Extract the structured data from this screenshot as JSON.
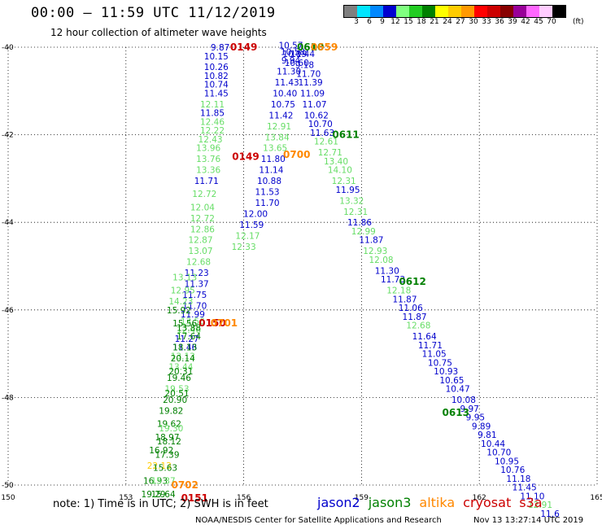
{
  "header": {
    "title": "00:00 – 11:59 UTC 11/12/2019",
    "subtitle": "12 hour collection of altimeter wave heights"
  },
  "colorbar": {
    "colors": [
      "#7f7f7f",
      "#00e5ff",
      "#0088ff",
      "#0000d0",
      "#80ff80",
      "#22cc22",
      "#008000",
      "#ffff00",
      "#ffcc00",
      "#ff9900",
      "#ff0000",
      "#cc0000",
      "#880000",
      "#990099",
      "#ff66ff",
      "#ffccff",
      "#000000"
    ],
    "labels": [
      "3",
      "6",
      "9",
      "12",
      "15",
      "18",
      "21",
      "24",
      "27",
      "30",
      "33",
      "36",
      "39",
      "42",
      "45",
      "70"
    ],
    "unit": "(ft)"
  },
  "footer": {
    "note": "note: 1) Time is in UTC; 2) SWH is in feet",
    "credit": "NOAA/NESDIS Center for Satellite Applications and Research",
    "timestamp": "Nov 13 13:27:14 UTC 2019"
  },
  "legend": [
    {
      "label": "jason2",
      "color": "#0000cc"
    },
    {
      "label": "jason3",
      "color": "#008000"
    },
    {
      "label": "altika",
      "color": "#ff8800"
    },
    {
      "label": "cryosat",
      "color": "#cc0000"
    },
    {
      "label": "s3a",
      "color": "#cc0000"
    }
  ],
  "chart_data": {
    "type": "scatter",
    "title": "00:00 – 11:59 UTC 11/12/2019",
    "xlim": [
      150,
      165
    ],
    "ylim": [
      -50,
      -40
    ],
    "x_ticks": [
      150,
      153,
      156,
      159,
      162,
      165
    ],
    "y_ticks": [
      -40,
      -42,
      -44,
      -46,
      -48,
      -50
    ],
    "x_tick_labels": [
      "150",
      "153",
      "156",
      "159",
      "162",
      "165"
    ],
    "y_tick_labels": [
      "-40",
      "-42",
      "-44",
      "-46",
      "-48",
      "-50"
    ],
    "grid": true,
    "points": [
      {
        "lon": 155.4,
        "lat": -40.0,
        "v": "9.87",
        "c": "#0000cc"
      },
      {
        "lon": 155.3,
        "lat": -40.2,
        "v": "10.15",
        "c": "#0000cc"
      },
      {
        "lon": 155.3,
        "lat": -40.45,
        "v": "10.26",
        "c": "#0000cc"
      },
      {
        "lon": 155.3,
        "lat": -40.65,
        "v": "10.82",
        "c": "#0000cc"
      },
      {
        "lon": 155.3,
        "lat": -40.85,
        "v": "10.74",
        "c": "#0000cc"
      },
      {
        "lon": 155.3,
        "lat": -41.05,
        "v": "11.45",
        "c": "#0000cc"
      },
      {
        "lon": 155.2,
        "lat": -41.3,
        "v": "12.11",
        "c": "#66dd66"
      },
      {
        "lon": 155.2,
        "lat": -41.5,
        "v": "11.85",
        "c": "#0000cc"
      },
      {
        "lon": 155.2,
        "lat": -41.7,
        "v": "12.46",
        "c": "#66dd66"
      },
      {
        "lon": 155.2,
        "lat": -41.9,
        "v": "12.22",
        "c": "#66dd66"
      },
      {
        "lon": 155.15,
        "lat": -42.1,
        "v": "12.43",
        "c": "#66dd66"
      },
      {
        "lon": 155.1,
        "lat": -42.3,
        "v": "13.96",
        "c": "#66dd66"
      },
      {
        "lon": 155.1,
        "lat": -42.55,
        "v": "13.76",
        "c": "#66dd66"
      },
      {
        "lon": 155.1,
        "lat": -42.8,
        "v": "13.36",
        "c": "#66dd66"
      },
      {
        "lon": 155.05,
        "lat": -43.05,
        "v": "11.71",
        "c": "#0000cc"
      },
      {
        "lon": 155.0,
        "lat": -43.35,
        "v": "12.72",
        "c": "#66dd66"
      },
      {
        "lon": 154.95,
        "lat": -43.65,
        "v": "12.04",
        "c": "#66dd66"
      },
      {
        "lon": 154.95,
        "lat": -43.9,
        "v": "12.72",
        "c": "#66dd66"
      },
      {
        "lon": 154.95,
        "lat": -44.15,
        "v": "12.86",
        "c": "#66dd66"
      },
      {
        "lon": 154.9,
        "lat": -44.4,
        "v": "12.87",
        "c": "#66dd66"
      },
      {
        "lon": 154.9,
        "lat": -44.65,
        "v": "13.07",
        "c": "#66dd66"
      },
      {
        "lon": 154.85,
        "lat": -44.9,
        "v": "12.68",
        "c": "#66dd66"
      },
      {
        "lon": 154.8,
        "lat": -45.15,
        "v": "11.23",
        "c": "#0000cc"
      },
      {
        "lon": 154.8,
        "lat": -45.4,
        "v": "11.37",
        "c": "#0000cc"
      },
      {
        "lon": 154.75,
        "lat": -45.65,
        "v": "11.75",
        "c": "#0000cc"
      },
      {
        "lon": 154.75,
        "lat": -45.9,
        "v": "11.70",
        "c": "#0000cc"
      },
      {
        "lon": 154.7,
        "lat": -46.1,
        "v": "11.99",
        "c": "#0000cc"
      },
      {
        "lon": 154.7,
        "lat": -46.25,
        "v": "13.56",
        "c": "#66dd66"
      },
      {
        "lon": 154.6,
        "lat": -46.45,
        "v": "12.46",
        "c": "#66dd66"
      },
      {
        "lon": 154.55,
        "lat": -46.65,
        "v": "11.27",
        "c": "#0000cc"
      },
      {
        "lon": 154.5,
        "lat": -46.85,
        "v": "11.46",
        "c": "#0000cc"
      },
      {
        "lon": 154.45,
        "lat": -47.05,
        "v": "13.13",
        "c": "#66dd66"
      },
      {
        "lon": 154.4,
        "lat": -47.3,
        "v": "13.44",
        "c": "#66dd66"
      },
      {
        "lon": 154.35,
        "lat": -47.55,
        "v": "19.46",
        "c": "#008000"
      },
      {
        "lon": 154.3,
        "lat": -47.8,
        "v": "19.53",
        "c": "#66dd66"
      },
      {
        "lon": 154.25,
        "lat": -48.05,
        "v": "20.90",
        "c": "#008000"
      },
      {
        "lon": 154.15,
        "lat": -48.3,
        "v": "19.82",
        "c": "#008000"
      },
      {
        "lon": 154.1,
        "lat": -48.6,
        "v": "19.62",
        "c": "#008000"
      },
      {
        "lon": 154.05,
        "lat": -48.9,
        "v": "18.97",
        "c": "#008000"
      },
      {
        "lon": 153.9,
        "lat": -49.2,
        "v": "16.92",
        "c": "#008000"
      },
      {
        "lon": 153.85,
        "lat": -49.55,
        "v": "22.13",
        "c": "#ffcc00"
      },
      {
        "lon": 153.75,
        "lat": -49.9,
        "v": "16.93",
        "c": "#008000"
      },
      {
        "lon": 153.7,
        "lat": -50.2,
        "v": "19.29",
        "c": "#008000"
      },
      {
        "lon": 154.5,
        "lat": -45.25,
        "v": "13.13",
        "c": "#66dd66"
      },
      {
        "lon": 154.45,
        "lat": -45.55,
        "v": "12.95",
        "c": "#66dd66"
      },
      {
        "lon": 154.4,
        "lat": -45.8,
        "v": "14.23",
        "c": "#66dd66"
      },
      {
        "lon": 154.35,
        "lat": -46.0,
        "v": "15.92",
        "c": "#008000"
      },
      {
        "lon": 154.5,
        "lat": -46.3,
        "v": "15.56",
        "c": "#008000"
      },
      {
        "lon": 154.6,
        "lat": -46.4,
        "v": "13.88",
        "c": "#008000"
      },
      {
        "lon": 154.6,
        "lat": -46.6,
        "v": "17.64",
        "c": "#008000"
      },
      {
        "lon": 154.5,
        "lat": -46.85,
        "v": "18.13",
        "c": "#008000"
      },
      {
        "lon": 154.45,
        "lat": -47.1,
        "v": "20.14",
        "c": "#008000"
      },
      {
        "lon": 154.4,
        "lat": -47.4,
        "v": "20.31",
        "c": "#008000"
      },
      {
        "lon": 154.3,
        "lat": -47.9,
        "v": "20.51",
        "c": "#008000"
      },
      {
        "lon": 154.15,
        "lat": -48.7,
        "v": "19.30",
        "c": "#66dd66"
      },
      {
        "lon": 154.1,
        "lat": -49.0,
        "v": "18.12",
        "c": "#008000"
      },
      {
        "lon": 154.05,
        "lat": -49.3,
        "v": "17.39",
        "c": "#008000"
      },
      {
        "lon": 154.0,
        "lat": -49.6,
        "v": "15.63",
        "c": "#008000"
      },
      {
        "lon": 153.95,
        "lat": -49.9,
        "v": "15.37",
        "c": "#66dd66"
      },
      {
        "lon": 153.95,
        "lat": -50.2,
        "v": "15.64",
        "c": "#008000"
      },
      {
        "lon": 156.3,
        "lat": -43.8,
        "v": "12.00",
        "c": "#0000cc"
      },
      {
        "lon": 156.2,
        "lat": -44.05,
        "v": "11.59",
        "c": "#0000cc"
      },
      {
        "lon": 156.1,
        "lat": -44.3,
        "v": "12.17",
        "c": "#66dd66"
      },
      {
        "lon": 156.0,
        "lat": -44.55,
        "v": "12.33",
        "c": "#66dd66"
      },
      {
        "lon": 156.6,
        "lat": -43.55,
        "v": "11.70",
        "c": "#0000cc"
      },
      {
        "lon": 156.6,
        "lat": -43.3,
        "v": "11.53",
        "c": "#0000cc"
      },
      {
        "lon": 156.65,
        "lat": -43.05,
        "v": "10.88",
        "c": "#0000cc"
      },
      {
        "lon": 156.7,
        "lat": -42.8,
        "v": "11.14",
        "c": "#0000cc"
      },
      {
        "lon": 156.75,
        "lat": -42.55,
        "v": "11.80",
        "c": "#0000cc"
      },
      {
        "lon": 156.8,
        "lat": -42.3,
        "v": "13.65",
        "c": "#66dd66"
      },
      {
        "lon": 156.85,
        "lat": -42.05,
        "v": "13.84",
        "c": "#66dd66"
      },
      {
        "lon": 156.9,
        "lat": -41.8,
        "v": "12.91",
        "c": "#66dd66"
      },
      {
        "lon": 156.95,
        "lat": -41.55,
        "v": "11.42",
        "c": "#0000cc"
      },
      {
        "lon": 157.0,
        "lat": -41.3,
        "v": "10.75",
        "c": "#0000cc"
      },
      {
        "lon": 157.05,
        "lat": -41.05,
        "v": "10.40",
        "c": "#0000cc"
      },
      {
        "lon": 157.1,
        "lat": -40.8,
        "v": "11.43",
        "c": "#0000cc"
      },
      {
        "lon": 157.15,
        "lat": -40.55,
        "v": "11.30",
        "c": "#0000cc"
      },
      {
        "lon": 157.2,
        "lat": -40.3,
        "v": "9.94",
        "c": "#0000cc"
      },
      {
        "lon": 157.25,
        "lat": -40.1,
        "v": "10.58",
        "c": "#0000cc"
      },
      {
        "lon": 157.2,
        "lat": -39.95,
        "v": "10.57",
        "c": "#0000cc"
      },
      {
        "lon": 157.3,
        "lat": -40.15,
        "v": "10.19",
        "c": "#0000cc"
      },
      {
        "lon": 157.35,
        "lat": -40.35,
        "v": "10.60",
        "c": "#0000cc"
      },
      {
        "lon": 157.5,
        "lat": -40.15,
        "v": "10.44",
        "c": "#0000cc"
      },
      {
        "lon": 157.55,
        "lat": -40.4,
        "v": "9.18",
        "c": "#0000cc"
      },
      {
        "lon": 157.65,
        "lat": -40.6,
        "v": "11.70",
        "c": "#0000cc"
      },
      {
        "lon": 157.7,
        "lat": -40.8,
        "v": "11.39",
        "c": "#0000cc"
      },
      {
        "lon": 157.75,
        "lat": -41.05,
        "v": "11.09",
        "c": "#0000cc"
      },
      {
        "lon": 157.8,
        "lat": -41.3,
        "v": "11.07",
        "c": "#0000cc"
      },
      {
        "lon": 157.85,
        "lat": -41.55,
        "v": "10.62",
        "c": "#0000cc"
      },
      {
        "lon": 157.95,
        "lat": -41.75,
        "v": "10.70",
        "c": "#0000cc"
      },
      {
        "lon": 158.0,
        "lat": -41.95,
        "v": "11.63",
        "c": "#0000cc"
      },
      {
        "lon": 158.1,
        "lat": -42.15,
        "v": "12.61",
        "c": "#66dd66"
      },
      {
        "lon": 158.2,
        "lat": -42.4,
        "v": "12.71",
        "c": "#66dd66"
      },
      {
        "lon": 158.35,
        "lat": -42.6,
        "v": "13.40",
        "c": "#66dd66"
      },
      {
        "lon": 158.45,
        "lat": -42.8,
        "v": "14.10",
        "c": "#66dd66"
      },
      {
        "lon": 158.55,
        "lat": -43.05,
        "v": "12.31",
        "c": "#66dd66"
      },
      {
        "lon": 158.65,
        "lat": -43.25,
        "v": "11.95",
        "c": "#0000cc"
      },
      {
        "lon": 158.75,
        "lat": -43.5,
        "v": "13.32",
        "c": "#66dd66"
      },
      {
        "lon": 158.85,
        "lat": -43.75,
        "v": "12.31",
        "c": "#66dd66"
      },
      {
        "lon": 158.95,
        "lat": -44.0,
        "v": "11.86",
        "c": "#0000cc"
      },
      {
        "lon": 159.05,
        "lat": -44.2,
        "v": "12.99",
        "c": "#66dd66"
      },
      {
        "lon": 159.25,
        "lat": -44.4,
        "v": "11.87",
        "c": "#0000cc"
      },
      {
        "lon": 159.35,
        "lat": -44.65,
        "v": "12.93",
        "c": "#66dd66"
      },
      {
        "lon": 159.5,
        "lat": -44.85,
        "v": "12.08",
        "c": "#66dd66"
      },
      {
        "lon": 159.65,
        "lat": -45.1,
        "v": "11.30",
        "c": "#0000cc"
      },
      {
        "lon": 159.8,
        "lat": -45.3,
        "v": "11.73",
        "c": "#0000cc"
      },
      {
        "lon": 159.95,
        "lat": -45.55,
        "v": "12.18",
        "c": "#66dd66"
      },
      {
        "lon": 160.1,
        "lat": -45.75,
        "v": "11.87",
        "c": "#0000cc"
      },
      {
        "lon": 160.25,
        "lat": -45.95,
        "v": "11.06",
        "c": "#0000cc"
      },
      {
        "lon": 160.35,
        "lat": -46.15,
        "v": "11.87",
        "c": "#0000cc"
      },
      {
        "lon": 160.45,
        "lat": -46.35,
        "v": "12.68",
        "c": "#66dd66"
      },
      {
        "lon": 160.6,
        "lat": -46.6,
        "v": "11.64",
        "c": "#0000cc"
      },
      {
        "lon": 160.75,
        "lat": -46.8,
        "v": "11.71",
        "c": "#0000cc"
      },
      {
        "lon": 160.85,
        "lat": -47.0,
        "v": "11.05",
        "c": "#0000cc"
      },
      {
        "lon": 161.0,
        "lat": -47.2,
        "v": "10.75",
        "c": "#0000cc"
      },
      {
        "lon": 161.15,
        "lat": -47.4,
        "v": "10.93",
        "c": "#0000cc"
      },
      {
        "lon": 161.3,
        "lat": -47.6,
        "v": "10.65",
        "c": "#0000cc"
      },
      {
        "lon": 161.45,
        "lat": -47.8,
        "v": "10.47",
        "c": "#0000cc"
      },
      {
        "lon": 161.6,
        "lat": -48.05,
        "v": "10.08",
        "c": "#0000cc"
      },
      {
        "lon": 161.75,
        "lat": -48.25,
        "v": "9.97",
        "c": "#0000cc"
      },
      {
        "lon": 161.9,
        "lat": -48.45,
        "v": "9.95",
        "c": "#0000cc"
      },
      {
        "lon": 162.05,
        "lat": -48.65,
        "v": "9.89",
        "c": "#0000cc"
      },
      {
        "lon": 162.2,
        "lat": -48.85,
        "v": "9.81",
        "c": "#0000cc"
      },
      {
        "lon": 162.35,
        "lat": -49.05,
        "v": "10.44",
        "c": "#0000cc"
      },
      {
        "lon": 162.5,
        "lat": -49.25,
        "v": "10.70",
        "c": "#0000cc"
      },
      {
        "lon": 162.7,
        "lat": -49.45,
        "v": "10.95",
        "c": "#0000cc"
      },
      {
        "lon": 162.85,
        "lat": -49.65,
        "v": "10.76",
        "c": "#0000cc"
      },
      {
        "lon": 163.0,
        "lat": -49.85,
        "v": "11.18",
        "c": "#0000cc"
      },
      {
        "lon": 163.15,
        "lat": -50.05,
        "v": "11.45",
        "c": "#0000cc"
      },
      {
        "lon": 163.35,
        "lat": -50.25,
        "v": "11.10",
        "c": "#0000cc"
      },
      {
        "lon": 163.55,
        "lat": -50.45,
        "v": "12.91",
        "c": "#66dd66"
      },
      {
        "lon": 163.8,
        "lat": -50.65,
        "v": "11.6",
        "c": "#0000cc"
      }
    ],
    "annotations": [
      {
        "lon": 156.0,
        "lat": -40.0,
        "text": "0149",
        "c": "#cc0000"
      },
      {
        "lon": 157.7,
        "lat": -40.0,
        "text": "0610",
        "c": "#008000"
      },
      {
        "lon": 158.05,
        "lat": -40.0,
        "text": "0659",
        "c": "#ff8800"
      },
      {
        "lon": 158.6,
        "lat": -42.0,
        "text": "0611",
        "c": "#008000"
      },
      {
        "lon": 156.05,
        "lat": -42.5,
        "text": "0149",
        "c": "#cc0000"
      },
      {
        "lon": 157.35,
        "lat": -42.45,
        "text": "0700",
        "c": "#ff8800"
      },
      {
        "lon": 160.3,
        "lat": -45.35,
        "text": "0612",
        "c": "#008000"
      },
      {
        "lon": 155.2,
        "lat": -46.3,
        "text": "0150",
        "c": "#cc0000"
      },
      {
        "lon": 155.5,
        "lat": -46.3,
        "text": "0701",
        "c": "#ff8800"
      },
      {
        "lon": 161.4,
        "lat": -48.35,
        "text": "0613",
        "c": "#008000"
      },
      {
        "lon": 154.5,
        "lat": -50.0,
        "text": "0702",
        "c": "#ff8800"
      },
      {
        "lon": 154.75,
        "lat": -50.3,
        "text": "0151",
        "c": "#cc0000"
      }
    ]
  }
}
